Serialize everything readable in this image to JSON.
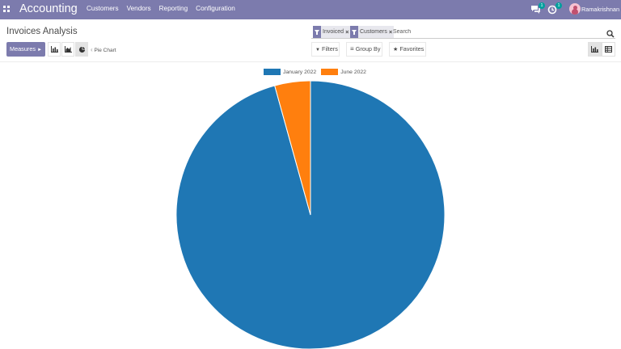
{
  "app": {
    "title": "Accounting"
  },
  "menu": [
    "Customers",
    "Vendors",
    "Reporting",
    "Configuration"
  ],
  "systray": {
    "messages_count": "1",
    "activities_count": "1",
    "user": "Ramakrishnan"
  },
  "page": {
    "title": "Invoices Analysis"
  },
  "search": {
    "facets": [
      {
        "label": "Invoiced"
      },
      {
        "label": "Customers"
      }
    ],
    "placeholder": "Search"
  },
  "toolbar": {
    "measures_label": "Measures",
    "breadcrumb": "Pie Chart",
    "filters_label": "Filters",
    "groupby_label": "Group By",
    "favorites_label": "Favorites"
  },
  "colors": {
    "navbar": "#7c7bad",
    "slice_1": "#1f77b4",
    "slice_2": "#ff7f0e"
  },
  "chart_data": {
    "type": "pie",
    "categories": [
      "January 2022",
      "June 2022"
    ],
    "values": [
      95.7,
      4.3
    ],
    "legend": "top"
  }
}
